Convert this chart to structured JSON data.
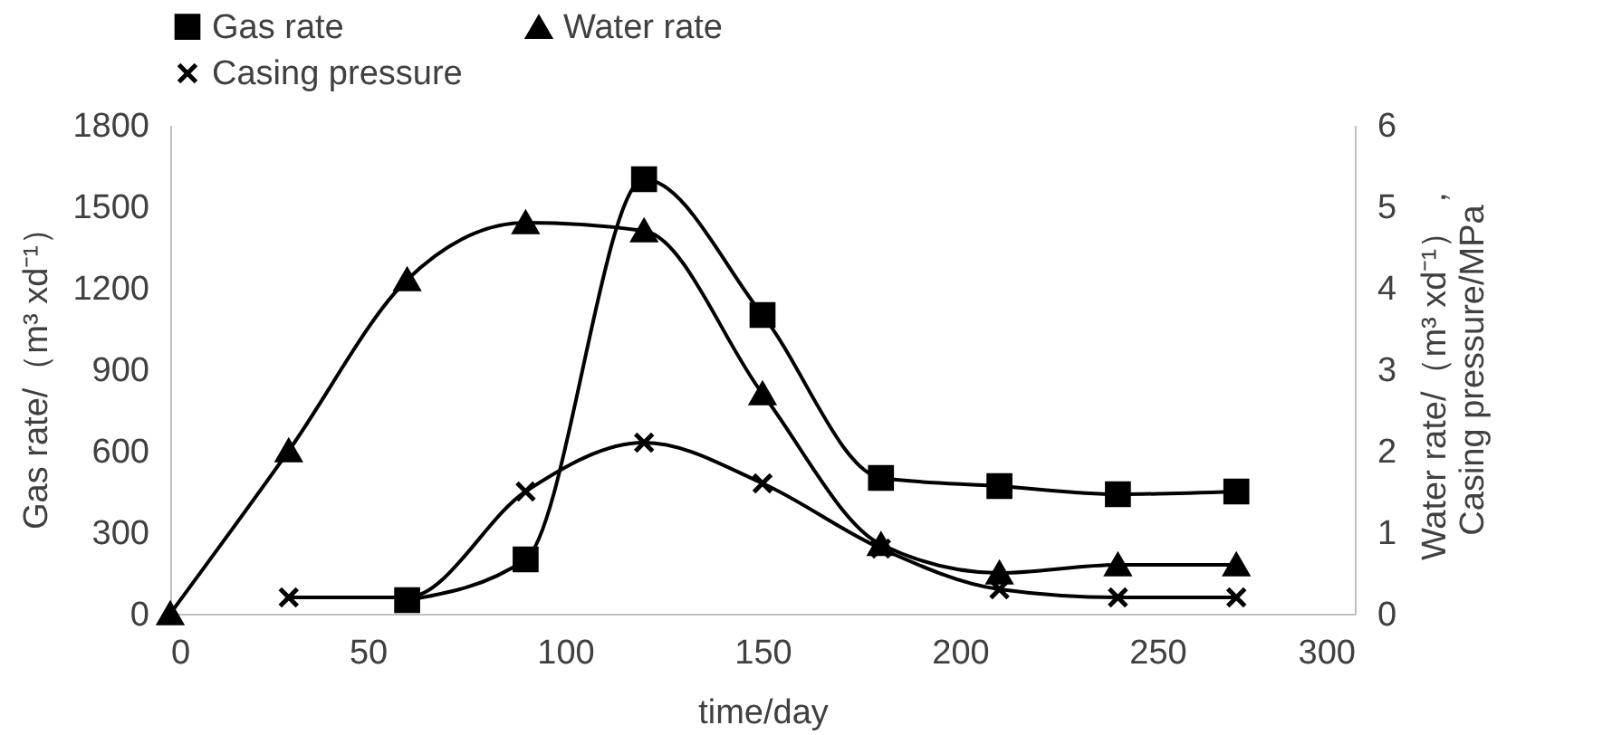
{
  "chart_data": {
    "type": "line",
    "xlabel": "time/day",
    "ylabel": "Gas rate/（m³ xd⁻¹）",
    "y2label": "Water rate/（m³ xd⁻¹），\nCasing pressure/MPa",
    "series": [
      {
        "name": "Gas rate",
        "color": "#000000",
        "marker": "square",
        "x": [
          60,
          90,
          120,
          150,
          180,
          210,
          240,
          270
        ],
        "values": [
          50,
          200,
          1600,
          1100,
          500,
          470,
          440,
          450
        ]
      },
      {
        "name": "Water rate",
        "color": "#000000",
        "marker": "triangle",
        "axis": "y2",
        "x": [
          0,
          30,
          60,
          90,
          120,
          150,
          180,
          210,
          240,
          270
        ],
        "values": [
          0,
          2.0,
          4.1,
          4.8,
          4.7,
          2.7,
          0.85,
          0.5,
          0.6,
          0.6
        ]
      },
      {
        "name": "Casing pressure",
        "color": "#000000",
        "marker": "cross",
        "axis": "y2",
        "x": [
          30,
          60,
          90,
          120,
          150,
          180,
          210,
          240,
          270
        ],
        "values": [
          0.2,
          0.2,
          1.5,
          2.1,
          1.6,
          0.8,
          0.3,
          0.2,
          0.2
        ]
      }
    ],
    "xlim": [
      0,
      300
    ],
    "xticks": [
      0,
      50,
      100,
      150,
      200,
      250,
      300
    ],
    "ylim": [
      0,
      1800
    ],
    "yticks": [
      0,
      300,
      600,
      900,
      1200,
      1500,
      1800
    ],
    "y2lim": [
      0,
      6
    ],
    "y2ticks": [
      0,
      1,
      2,
      3,
      4,
      5,
      6
    ],
    "grid": false,
    "legend": "top",
    "line_style": "solid"
  }
}
